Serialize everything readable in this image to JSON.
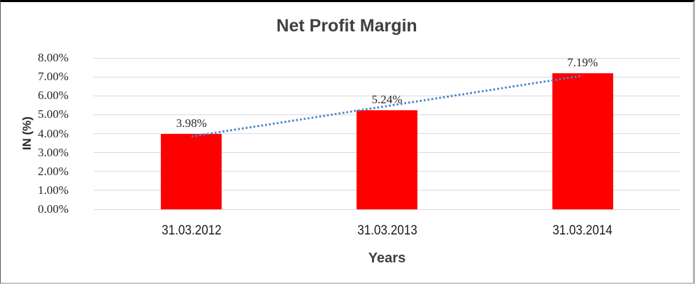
{
  "chart": {
    "title": "Net Profit Margin",
    "y_axis_title": "IN (%)",
    "x_axis_title": "Years",
    "colors": {
      "bar": "#ff0000",
      "trendline": "#4a87c8",
      "gridline": "#d9d9d9",
      "title_text": "#3f3f3f",
      "label_text": "#262626"
    }
  },
  "chart_data": {
    "type": "bar",
    "title": "Net Profit Margin",
    "xlabel": "Years",
    "ylabel": "IN (%)",
    "categories": [
      "31.03.2012",
      "31.03.2013",
      "31.03.2014"
    ],
    "values": [
      3.98,
      5.24,
      7.19
    ],
    "data_labels": [
      "3.98%",
      "5.24%",
      "7.19%"
    ],
    "ylim": [
      0,
      8
    ],
    "y_tick_step": 1,
    "y_tick_labels": [
      "0.00%",
      "1.00%",
      "2.00%",
      "3.00%",
      "4.00%",
      "5.00%",
      "6.00%",
      "7.00%",
      "8.00%"
    ],
    "grid": true,
    "legend": false,
    "bar_color": "#ff0000",
    "trendline": {
      "type": "linear",
      "style": "dotted",
      "color": "#4a87c8"
    }
  }
}
